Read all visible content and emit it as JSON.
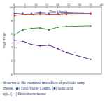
{
  "chart_data": {
    "type": "line",
    "x_label": "Time (days)",
    "y_label": "log (cfu/g)",
    "x": [
      0,
      4,
      8,
      12,
      16,
      20,
      24,
      35
    ],
    "xlim": [
      0,
      40
    ],
    "xticks": [
      0,
      5,
      10,
      15,
      20,
      25,
      30,
      35,
      40
    ],
    "ylim": [
      0,
      10
    ],
    "yticks": [
      0,
      2,
      4,
      6,
      8,
      10
    ],
    "series": [
      {
        "color": "#3b63c9",
        "marker": "diamond",
        "values": [
          9.0,
          9.1,
          9.1,
          9.2,
          9.1,
          9.1,
          9.2,
          9.1
        ]
      },
      {
        "color": "#e0452a",
        "marker": "square",
        "values": [
          8.7,
          8.9,
          8.9,
          9.0,
          8.9,
          8.9,
          9.0,
          9.0
        ]
      },
      {
        "color": "#3e9a3a",
        "marker": "triangle",
        "values": [
          5.8,
          6.6,
          6.8,
          6.9,
          6.6,
          7.0,
          7.1,
          7.2
        ]
      },
      {
        "color": "#5a2a88",
        "marker": "circle",
        "values": [
          5.0,
          4.9,
          4.4,
          4.2,
          4.3,
          3.8,
          3.2,
          2.2
        ]
      }
    ],
    "caption": [
      "th curves of the examined microflora of probiotic samp",
      "cheese. (◆) Total Viable Counts, (■) lactic acid",
      "spp., (—) Enterobacteriaceae"
    ]
  }
}
